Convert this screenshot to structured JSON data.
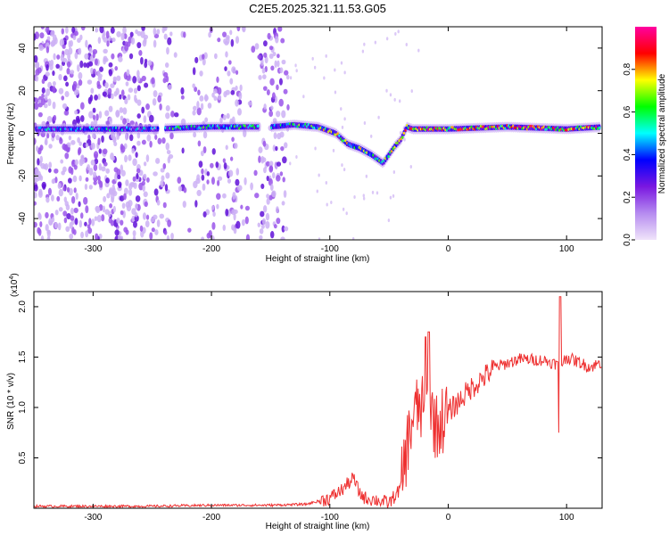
{
  "title": "C2E5.2025.321.11.53.G05",
  "chart_data": [
    {
      "type": "heatmap",
      "xlabel": "Height of straight line (km)",
      "ylabel": "Frequency (Hz)",
      "xlim": [
        -350,
        130
      ],
      "ylim": [
        -50,
        50
      ],
      "xticks": [
        -300,
        -200,
        -100,
        0,
        100
      ],
      "yticks": [
        -40,
        -20,
        0,
        20,
        40
      ],
      "colorbar": {
        "label": "Normalized spectral amplitude",
        "range": [
          0,
          1
        ],
        "ticks": [
          "0.0",
          "0.2",
          "0.4",
          "0.6",
          "0.8"
        ],
        "tick_values": [
          0,
          0.2,
          0.4,
          0.6,
          0.8
        ],
        "colors": [
          "#f0e4fa",
          "#b58bf0",
          "#7a17e0",
          "#0000ff",
          "#00ffff",
          "#00ff00",
          "#ffff00",
          "#ff0000",
          "#ff00a0"
        ]
      },
      "ridge": {
        "x": [
          -350,
          -300,
          -250,
          -200,
          -150,
          -130,
          -110,
          -95,
          -85,
          -75,
          -65,
          -60,
          -55,
          -50,
          -45,
          -40,
          -35,
          -30,
          -20,
          0,
          50,
          100,
          130
        ],
        "y": [
          2,
          2,
          2,
          3,
          3,
          4,
          3,
          0,
          -5,
          -7,
          -10,
          -12,
          -14,
          -10,
          -6,
          -3,
          3,
          2,
          2,
          2,
          3,
          2,
          3
        ]
      }
    },
    {
      "type": "line",
      "xlabel": "Height of straight line (km)",
      "ylabel": "SNR (10 * v/v)",
      "y_exponent": "(x10",
      "y_exponent_power": "4",
      "y_exponent_close": ")",
      "xlim": [
        -350,
        130
      ],
      "ylim": [
        0,
        2.15
      ],
      "xticks": [
        -300,
        -200,
        -100,
        0,
        100
      ],
      "yticks": [
        0.5,
        1.0,
        1.5,
        2.0
      ],
      "ytick_labels": [
        "0.5",
        "1.0",
        "1.5",
        "2.0"
      ],
      "line_color": "#ee3030",
      "series": [
        {
          "x": [
            -350,
            -300,
            -250,
            -200,
            -150,
            -120,
            -100,
            -90,
            -80,
            -75,
            -70,
            -60,
            -50,
            -40,
            -35,
            -30,
            -25,
            -20,
            -15,
            -10,
            0,
            20,
            40,
            60,
            80,
            95,
            100,
            110,
            120,
            130
          ],
          "y": [
            0.02,
            0.02,
            0.02,
            0.03,
            0.03,
            0.04,
            0.1,
            0.18,
            0.3,
            0.15,
            0.1,
            0.08,
            0.05,
            0.2,
            0.6,
            0.9,
            1.0,
            0.95,
            1.0,
            0.8,
            0.95,
            1.2,
            1.4,
            1.48,
            1.47,
            1.42,
            1.5,
            1.45,
            1.4,
            1.45
          ]
        }
      ]
    }
  ]
}
